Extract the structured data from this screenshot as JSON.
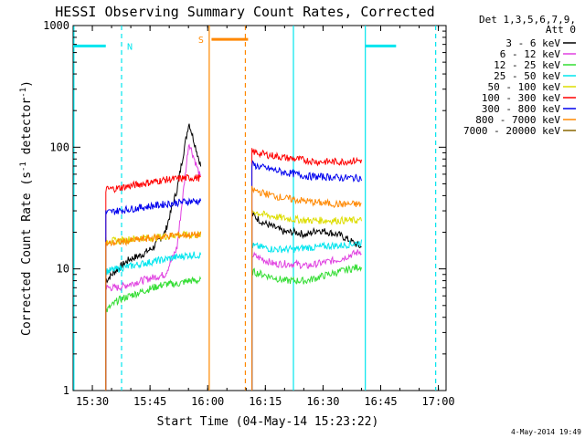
{
  "chart_data": {
    "type": "line",
    "title": "HESSI Observing Summary Count Rates, Corrected",
    "xlabel": "Start Time (04-May-14 15:23:22)",
    "ylabel": "Corrected Count Rate (s",
    "ylabel_sup1": "-1",
    "ylabel_mid": " detector",
    "ylabel_sup2": "-1",
    "ylabel_end": ")",
    "yscale": "log",
    "ylim": [
      1,
      1000
    ],
    "xlim_min": [
      925,
      1022
    ],
    "x_tick_minutes": [
      930,
      945,
      960,
      975,
      990,
      1005,
      1020
    ],
    "x_tick_labels": [
      "15:30",
      "15:45",
      "16:00",
      "16:15",
      "16:30",
      "16:45",
      "17:00"
    ],
    "y_tick_labels": [
      "1",
      "10",
      "100",
      "1000"
    ],
    "detector_label": "Det 1,3,5,6,7,9,",
    "attenuator_label": "Att 0",
    "footer_date": "4-May-2014 19:49",
    "segments": [
      {
        "start": 933.5,
        "end": 958.2
      },
      {
        "start": 971.5,
        "end": 1000.0
      }
    ],
    "series": [
      {
        "name": "3 - 6 keV",
        "color": "#000000",
        "seg1": [
          8,
          10,
          12,
          13,
          15,
          20,
          45,
          160,
          70
        ],
        "seg2": [
          28,
          24,
          22,
          20,
          20,
          19,
          21,
          20,
          19,
          17,
          15
        ]
      },
      {
        "name": "6 - 12 keV",
        "color": "#e040e0",
        "seg1": [
          7,
          7,
          7.5,
          8,
          8.5,
          9,
          15,
          110,
          55
        ],
        "seg2": [
          13,
          12,
          11,
          11,
          11,
          10.5,
          11,
          11.5,
          12,
          13,
          14
        ]
      },
      {
        "name": "12 - 25 keV",
        "color": "#33dd33",
        "seg1": [
          4.5,
          5.5,
          6,
          6.5,
          7,
          7.5,
          7.5,
          8,
          8
        ],
        "seg2": [
          9.5,
          9,
          8.5,
          8,
          8,
          8,
          8.5,
          9,
          9.5,
          10,
          10.5
        ]
      },
      {
        "name": "25 - 50 keV",
        "color": "#00e5ee",
        "seg1": [
          9.5,
          10,
          10.5,
          11,
          11.5,
          12,
          12.5,
          13,
          13
        ],
        "seg2": [
          15.5,
          15,
          14.5,
          14.5,
          14.5,
          15,
          15,
          15.5,
          15.5,
          16,
          16.5
        ]
      },
      {
        "name": "50 - 100 keV",
        "color": "#dddd00",
        "seg1": [
          17,
          17,
          17.5,
          18,
          18,
          18.5,
          19,
          19,
          19
        ],
        "seg2": [
          30,
          28,
          27,
          26,
          25.5,
          25,
          25,
          25,
          25,
          25,
          25
        ]
      },
      {
        "name": "100 - 300 keV",
        "color": "#ff0000",
        "seg1": [
          45,
          46,
          48,
          50,
          52,
          54,
          55,
          56,
          56
        ],
        "seg2": [
          92,
          88,
          85,
          82,
          80,
          78,
          76,
          76,
          76,
          77,
          78
        ]
      },
      {
        "name": "300 - 800 keV",
        "color": "#0000ee",
        "seg1": [
          29,
          30,
          31,
          32,
          33,
          34,
          35,
          36,
          36
        ],
        "seg2": [
          72,
          68,
          65,
          62,
          60,
          58,
          57,
          57,
          56,
          56,
          56
        ]
      },
      {
        "name": "800 - 7000 keV",
        "color": "#ff8800",
        "seg1": [
          16,
          16.5,
          17,
          17.5,
          18,
          18.5,
          19,
          19,
          19
        ],
        "seg2": [
          45,
          42,
          40,
          38,
          37,
          36,
          35,
          34.5,
          34,
          34,
          34
        ]
      },
      {
        "name": "7000 - 20000 keV",
        "color": "#886600",
        "seg1": [],
        "seg2": []
      }
    ],
    "annotations": [
      {
        "label": "N",
        "color": "#00e5ee",
        "style": "dashed",
        "minute": 937.6,
        "bar_start": 925,
        "bar_end": 933.5,
        "level": 680
      },
      {
        "label": "",
        "color": "#00e5ee",
        "style": "solid",
        "minute": 925.2,
        "bar_start": null,
        "bar_end": null,
        "level": null
      },
      {
        "label": "S",
        "color": "#ff8800",
        "style": "solid",
        "minute": 960.4,
        "bar_start": 961.0,
        "bar_end": 970.5,
        "level": 770
      },
      {
        "label": "",
        "color": "#ff8800",
        "style": "dashed",
        "minute": 969.8,
        "bar_start": null,
        "bar_end": null,
        "level": null
      },
      {
        "label": "",
        "color": "#00e5ee",
        "style": "solid",
        "minute": 982.3,
        "bar_start": null,
        "bar_end": null,
        "level": null
      },
      {
        "label": "",
        "color": "#00e5ee",
        "style": "solid",
        "minute": 1001.0,
        "bar_start": 1001.0,
        "bar_end": 1009.0,
        "level": 680
      },
      {
        "label": "",
        "color": "#00e5ee",
        "style": "dashed",
        "minute": 1019.3,
        "bar_start": null,
        "bar_end": null,
        "level": null
      }
    ]
  }
}
